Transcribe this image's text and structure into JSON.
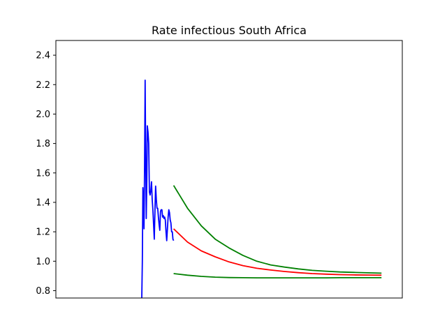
{
  "chart_data": {
    "type": "line",
    "title": "Rate infectious South Africa",
    "xlabel": "",
    "ylabel": "",
    "xlim": [
      0,
      250
    ],
    "ylim": [
      0.75,
      2.5
    ],
    "yticks": [
      0.8,
      1.0,
      1.2,
      1.4,
      1.6,
      1.8,
      2.0,
      2.2,
      2.4
    ],
    "ytick_labels": [
      "0.8",
      "1.0",
      "1.2",
      "1.4",
      "1.6",
      "1.8",
      "2.0",
      "2.2",
      "2.4"
    ],
    "grid": false,
    "series": [
      {
        "color": "#0000ff",
        "x": [
          62.0,
          62.4,
          62.8,
          63.2,
          63.6,
          64.0,
          64.4,
          64.8,
          65.2,
          65.6,
          66.0,
          66.5,
          67.0,
          67.5,
          68.0,
          68.5,
          69.0,
          69.5,
          70.0,
          70.5,
          71.0,
          71.5,
          72.0,
          72.5,
          73.0,
          73.5,
          74.0,
          74.5,
          75.0,
          75.5,
          76.0,
          76.5,
          77.0,
          77.5,
          78.0,
          78.5,
          79.0,
          79.5,
          80.0,
          80.5,
          81.0,
          81.5,
          82.0,
          82.5,
          83.0,
          83.5,
          84.0,
          84.5,
          85.0
        ],
        "y": [
          0.75,
          1.0,
          1.5,
          1.4,
          1.22,
          1.65,
          2.23,
          1.7,
          1.29,
          1.55,
          1.92,
          1.88,
          1.8,
          1.47,
          1.45,
          1.48,
          1.54,
          1.42,
          1.35,
          1.25,
          1.15,
          1.35,
          1.51,
          1.42,
          1.36,
          1.36,
          1.3,
          1.25,
          1.21,
          1.34,
          1.35,
          1.35,
          1.3,
          1.31,
          1.29,
          1.3,
          1.28,
          1.2,
          1.14,
          1.22,
          1.3,
          1.35,
          1.33,
          1.28,
          1.26,
          1.2,
          1.2,
          1.15,
          1.14
        ]
      },
      {
        "color": "#ff0000",
        "x": [
          85,
          95,
          105,
          115,
          125,
          135,
          145,
          155,
          165,
          175,
          185,
          195,
          205,
          215,
          225,
          235
        ],
        "y": [
          1.22,
          1.13,
          1.07,
          1.03,
          0.995,
          0.97,
          0.952,
          0.94,
          0.93,
          0.922,
          0.916,
          0.912,
          0.909,
          0.907,
          0.906,
          0.905
        ]
      },
      {
        "color": "#008000",
        "x": [
          85,
          95,
          105,
          115,
          125,
          135,
          145,
          155,
          165,
          175,
          185,
          195,
          205,
          215,
          225,
          235
        ],
        "y": [
          1.515,
          1.36,
          1.24,
          1.15,
          1.09,
          1.04,
          1.0,
          0.975,
          0.96,
          0.948,
          0.938,
          0.932,
          0.927,
          0.924,
          0.921,
          0.919
        ]
      },
      {
        "color": "#008000",
        "x": [
          85,
          95,
          105,
          115,
          125,
          135,
          145,
          155,
          165,
          175,
          185,
          195,
          205,
          215,
          225,
          235
        ],
        "y": [
          0.916,
          0.905,
          0.897,
          0.892,
          0.889,
          0.888,
          0.887,
          0.887,
          0.887,
          0.887,
          0.887,
          0.887,
          0.888,
          0.888,
          0.888,
          0.888
        ]
      }
    ]
  }
}
